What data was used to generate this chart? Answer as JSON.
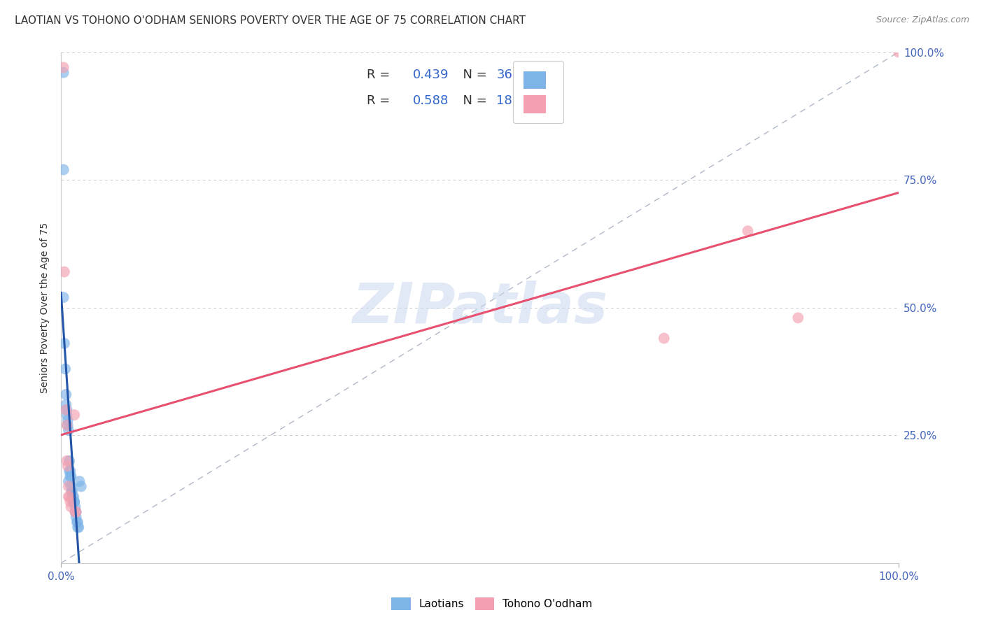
{
  "title": "LAOTIAN VS TOHONO O'ODHAM SENIORS POVERTY OVER THE AGE OF 75 CORRELATION CHART",
  "source": "Source: ZipAtlas.com",
  "ylabel": "Seniors Poverty Over the Age of 75",
  "xlim": [
    0.0,
    1.0
  ],
  "ylim": [
    0.0,
    1.0
  ],
  "grid_color": "#cccccc",
  "watermark": "ZIPatlas",
  "laotian_R": 0.439,
  "laotian_N": 36,
  "tohono_R": 0.588,
  "tohono_N": 18,
  "laotian_color": "#7EB4E8",
  "laotian_line_color": "#2356A8",
  "tohono_color": "#F4A0B0",
  "tohono_line_color": "#E85070",
  "laotian_scatter": [
    [
      0.003,
      0.77
    ],
    [
      0.003,
      0.52
    ],
    [
      0.004,
      0.43
    ],
    [
      0.005,
      0.38
    ],
    [
      0.006,
      0.33
    ],
    [
      0.006,
      0.31
    ],
    [
      0.007,
      0.3
    ],
    [
      0.007,
      0.29
    ],
    [
      0.008,
      0.28
    ],
    [
      0.008,
      0.27
    ],
    [
      0.009,
      0.16
    ],
    [
      0.009,
      0.26
    ],
    [
      0.01,
      0.2
    ],
    [
      0.01,
      0.18
    ],
    [
      0.011,
      0.18
    ],
    [
      0.011,
      0.17
    ],
    [
      0.012,
      0.17
    ],
    [
      0.012,
      0.15
    ],
    [
      0.013,
      0.14
    ],
    [
      0.013,
      0.14
    ],
    [
      0.014,
      0.13
    ],
    [
      0.015,
      0.13
    ],
    [
      0.015,
      0.12
    ],
    [
      0.016,
      0.12
    ],
    [
      0.016,
      0.12
    ],
    [
      0.017,
      0.11
    ],
    [
      0.017,
      0.1
    ],
    [
      0.018,
      0.1
    ],
    [
      0.018,
      0.09
    ],
    [
      0.019,
      0.08
    ],
    [
      0.02,
      0.08
    ],
    [
      0.02,
      0.07
    ],
    [
      0.021,
      0.07
    ],
    [
      0.022,
      0.16
    ],
    [
      0.024,
      0.15
    ],
    [
      0.003,
      0.96
    ]
  ],
  "tohono_scatter": [
    [
      0.003,
      0.97
    ],
    [
      0.004,
      0.57
    ],
    [
      0.006,
      0.3
    ],
    [
      0.007,
      0.27
    ],
    [
      0.007,
      0.2
    ],
    [
      0.008,
      0.19
    ],
    [
      0.009,
      0.15
    ],
    [
      0.009,
      0.13
    ],
    [
      0.01,
      0.13
    ],
    [
      0.011,
      0.12
    ],
    [
      0.012,
      0.11
    ],
    [
      0.016,
      0.29
    ],
    [
      0.017,
      0.1
    ],
    [
      0.018,
      0.1
    ],
    [
      0.72,
      0.44
    ],
    [
      0.82,
      0.65
    ],
    [
      0.88,
      0.48
    ],
    [
      1.0,
      1.0
    ]
  ],
  "background_color": "#ffffff",
  "title_fontsize": 11,
  "axis_label_fontsize": 10,
  "tick_fontsize": 11,
  "source_fontsize": 9,
  "legend_fontsize": 13
}
